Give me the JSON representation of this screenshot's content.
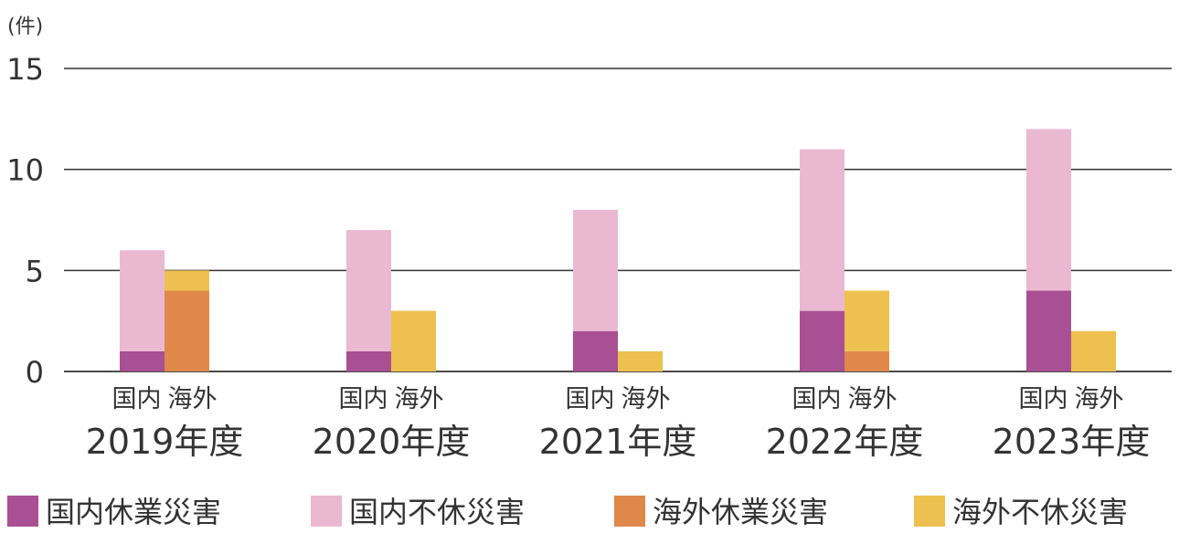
{
  "chart_data": {
    "type": "bar",
    "stacked": true,
    "y_unit": "(件)",
    "ylim": [
      0,
      15
    ],
    "yticks": [
      0,
      5,
      10,
      15
    ],
    "grid": true,
    "legend_position": "bottom",
    "categories": [
      "2019年度",
      "2020年度",
      "2021年度",
      "2022年度",
      "2023年度"
    ],
    "groups": [
      "国内",
      "海外"
    ],
    "series": [
      {
        "name": "国内休業災害",
        "group": "国内",
        "color": "#a94f93",
        "values": [
          1,
          1,
          2,
          3,
          4
        ]
      },
      {
        "name": "国内不休災害",
        "group": "国内",
        "color": "#ebb8d2",
        "values": [
          5,
          6,
          6,
          8,
          8
        ]
      },
      {
        "name": "海外休業災害",
        "group": "海外",
        "color": "#e0884a",
        "values": [
          4,
          0,
          0,
          1,
          0
        ]
      },
      {
        "name": "海外不休災害",
        "group": "海外",
        "color": "#eec050",
        "values": [
          1,
          3,
          1,
          3,
          2
        ]
      }
    ]
  }
}
